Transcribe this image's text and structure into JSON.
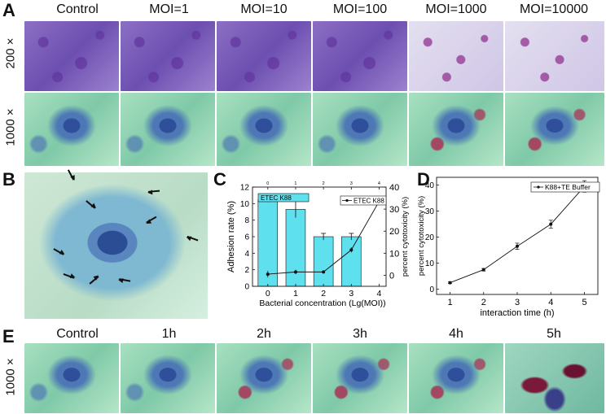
{
  "panels": {
    "A": {
      "letter": "A",
      "columns": [
        "Control",
        "MOI=1",
        "MOI=10",
        "MOI=100",
        "MOI=1000",
        "MOI=10000"
      ],
      "rows": [
        "200 ×",
        "1000 ×"
      ]
    },
    "B": {
      "letter": "B"
    },
    "C": {
      "letter": "C"
    },
    "D": {
      "letter": "D"
    },
    "E": {
      "letter": "E",
      "columns": [
        "Control",
        "1h",
        "2h",
        "3h",
        "4h",
        "5h"
      ],
      "rows": [
        "1000 ×"
      ]
    }
  },
  "chart_data": [
    {
      "panel": "C",
      "type": "bar",
      "categories": [
        "0",
        "1",
        "2",
        "3",
        "4"
      ],
      "series": [
        {
          "name": "ETEC K88",
          "kind": "bar",
          "axis": "left",
          "color": "#5fe0ee",
          "values": [
            10.5,
            9.3,
            6.0,
            6.0,
            null
          ],
          "errors": [
            0.3,
            1.0,
            0.4,
            0.4,
            null
          ]
        },
        {
          "name": "ETEC K88",
          "kind": "line",
          "axis": "right",
          "values": [
            0.5,
            1.5,
            1.5,
            11.5,
            33.5
          ],
          "errors": [
            1.5,
            1.0,
            0.6,
            1.2,
            0.6
          ]
        }
      ],
      "xlabel": "Bacterial concentration (Lg(MOI))",
      "ylabel": "Adhesion rate (%)",
      "ylabel_right": "percent cytotoxicity (%)",
      "ylim": [
        0,
        12
      ],
      "ylim_right": [
        -5,
        40
      ],
      "yticks": [
        "0",
        "2",
        "4",
        "6",
        "8",
        "10",
        "12"
      ],
      "yticks_right": [
        "0",
        "10",
        "20",
        "30",
        "40"
      ],
      "xticks": [
        "0",
        "1",
        "2",
        "3",
        "4"
      ],
      "top_ticks": [
        "0",
        "1",
        "2",
        "3",
        "4"
      ],
      "legend": "top"
    },
    {
      "panel": "D",
      "type": "line",
      "x": [
        1,
        2,
        3,
        4,
        5
      ],
      "series": [
        {
          "name": "K88+TE Buffer",
          "values": [
            2.5,
            7.5,
            16.5,
            25,
            39.5
          ],
          "errors": [
            0.3,
            0.5,
            1.2,
            1.5,
            2.2
          ]
        }
      ],
      "xlabel": "interaction time (h)",
      "ylabel": "percent cytotoxicity (%)",
      "xticks": [
        "1",
        "2",
        "3",
        "4",
        "5"
      ],
      "yticks": [
        "0",
        "10",
        "20",
        "30",
        "40"
      ],
      "ylim": [
        -2,
        43
      ],
      "legend": "top-right"
    }
  ]
}
